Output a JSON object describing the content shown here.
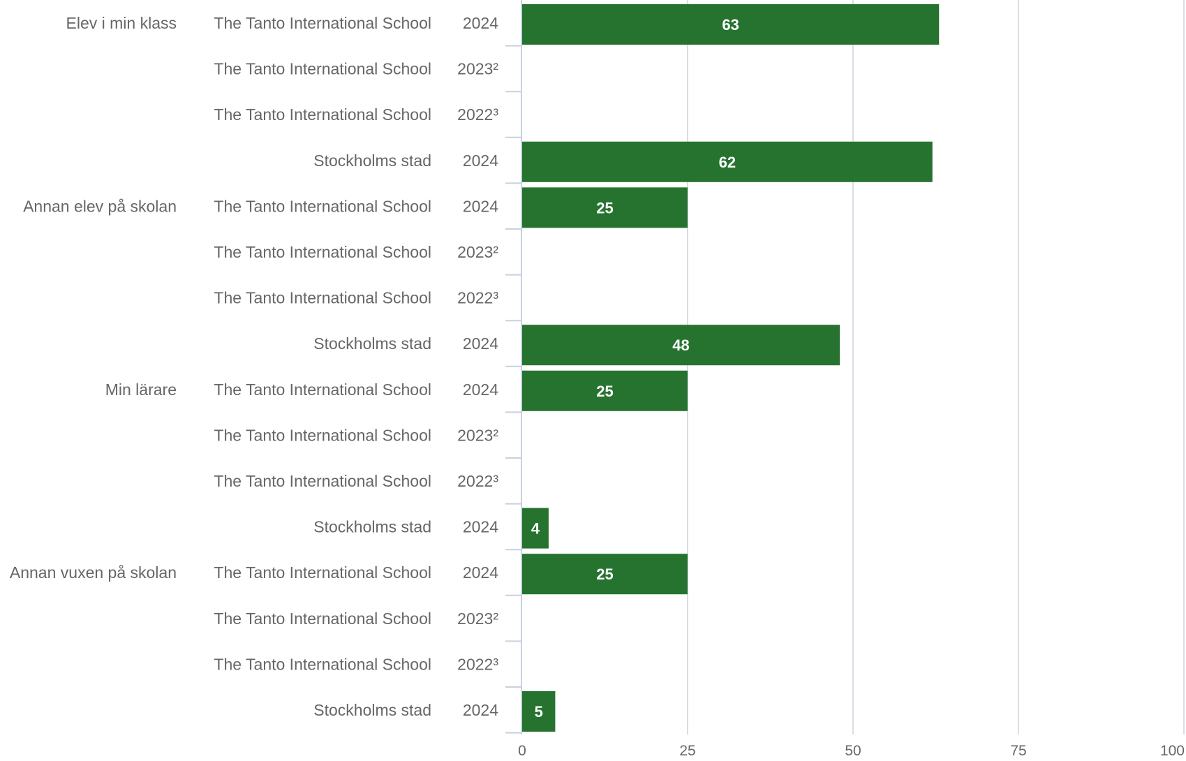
{
  "chart_data": {
    "type": "bar",
    "orientation": "horizontal",
    "xlim": [
      0,
      100
    ],
    "x_ticks": [
      "0",
      "25",
      "50",
      "75",
      "100"
    ],
    "grid": true,
    "colors": {
      "bar": "#267330",
      "grid": "#d9dde6",
      "axis": "#c8d1e0",
      "label": "#666666",
      "data_label": "#ffffff"
    },
    "groups": [
      {
        "name": "Elev i min klass",
        "rows": [
          {
            "entity": "The Tanto International School",
            "year": "2024",
            "value": 63
          },
          {
            "entity": "The Tanto International School",
            "year": "2023²",
            "value": null
          },
          {
            "entity": "The Tanto International School",
            "year": "2022³",
            "value": null
          },
          {
            "entity": "Stockholms stad",
            "year": "2024",
            "value": 62
          }
        ]
      },
      {
        "name": "Annan elev på skolan",
        "rows": [
          {
            "entity": "The Tanto International School",
            "year": "2024",
            "value": 25
          },
          {
            "entity": "The Tanto International School",
            "year": "2023²",
            "value": null
          },
          {
            "entity": "The Tanto International School",
            "year": "2022³",
            "value": null
          },
          {
            "entity": "Stockholms stad",
            "year": "2024",
            "value": 48
          }
        ]
      },
      {
        "name": "Min lärare",
        "rows": [
          {
            "entity": "The Tanto International School",
            "year": "2024",
            "value": 25
          },
          {
            "entity": "The Tanto International School",
            "year": "2023²",
            "value": null
          },
          {
            "entity": "The Tanto International School",
            "year": "2022³",
            "value": null
          },
          {
            "entity": "Stockholms stad",
            "year": "2024",
            "value": 4
          }
        ]
      },
      {
        "name": "Annan vuxen på skolan",
        "rows": [
          {
            "entity": "The Tanto International School",
            "year": "2024",
            "value": 25
          },
          {
            "entity": "The Tanto International School",
            "year": "2023²",
            "value": null
          },
          {
            "entity": "The Tanto International School",
            "year": "2022³",
            "value": null
          },
          {
            "entity": "Stockholms stad",
            "year": "2024",
            "value": 5
          }
        ]
      }
    ]
  }
}
